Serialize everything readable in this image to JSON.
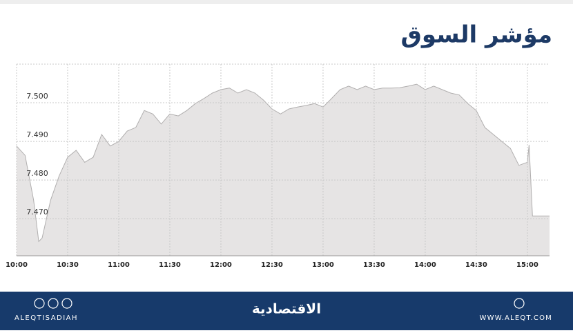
{
  "chart_data": {
    "type": "area",
    "title": "مؤشر السوق",
    "x": [
      "10:00",
      "10:05",
      "10:10",
      "10:13",
      "10:15",
      "10:20",
      "10:25",
      "10:30",
      "10:35",
      "10:40",
      "10:45",
      "10:50",
      "10:55",
      "11:00",
      "11:05",
      "11:10",
      "11:15",
      "11:20",
      "11:25",
      "11:30",
      "11:35",
      "11:40",
      "11:45",
      "11:50",
      "11:55",
      "12:00",
      "12:05",
      "12:10",
      "12:15",
      "12:20",
      "12:25",
      "12:30",
      "12:35",
      "12:40",
      "12:45",
      "12:50",
      "12:55",
      "13:00",
      "13:05",
      "13:10",
      "13:15",
      "13:20",
      "13:25",
      "13:30",
      "13:35",
      "13:40",
      "13:45",
      "13:50",
      "13:55",
      "14:00",
      "14:05",
      "14:10",
      "14:15",
      "14:20",
      "14:25",
      "14:30",
      "14:35",
      "14:40",
      "14:45",
      "14:50",
      "14:55",
      "15:00",
      "15:01",
      "15:03",
      "15:13"
    ],
    "values": [
      7.4888,
      7.4864,
      7.4748,
      7.4641,
      7.465,
      7.4748,
      7.4811,
      7.4859,
      7.4877,
      7.4846,
      7.4859,
      7.4918,
      7.4888,
      7.49,
      7.4927,
      7.4936,
      7.498,
      7.4971,
      7.4945,
      7.4971,
      7.4966,
      7.498,
      7.4998,
      7.5011,
      7.5025,
      7.5034,
      7.5038,
      7.5025,
      7.5034,
      7.5025,
      7.5007,
      7.4984,
      7.4971,
      7.4984,
      7.4989,
      7.4993,
      7.4998,
      7.4989,
      7.5011,
      7.5034,
      7.5043,
      7.5034,
      7.5043,
      7.5034,
      7.5038,
      7.5038,
      7.5039,
      7.5043,
      7.5048,
      7.5034,
      7.5043,
      7.5034,
      7.5025,
      7.502,
      7.4998,
      7.498,
      7.4936,
      7.4918,
      7.49,
      7.4882,
      7.4838,
      7.4846,
      7.4891,
      7.4707,
      7.4707
    ],
    "color": "#e6e4e4",
    "line_color": "#b0aeae",
    "xlim": [
      "10:00",
      "15:13"
    ],
    "xticks": [
      "10:00",
      "10:30",
      "11:00",
      "11:30",
      "12:00",
      "12:30",
      "13:00",
      "13:30",
      "14:00",
      "14:30",
      "15:00"
    ],
    "ylim": [
      7.4604,
      7.51
    ],
    "yticks": [
      {
        "value": 7.47,
        "label": "7.470"
      },
      {
        "value": 7.48,
        "label": "7.480"
      },
      {
        "value": 7.49,
        "label": "7.490"
      },
      {
        "value": 7.5,
        "label": "7.500"
      }
    ],
    "grid": true
  },
  "footer": {
    "handle": "ALEQTISADIAH",
    "logo": "الاقتصادية",
    "website": "WWW.ALEQT.COM"
  }
}
